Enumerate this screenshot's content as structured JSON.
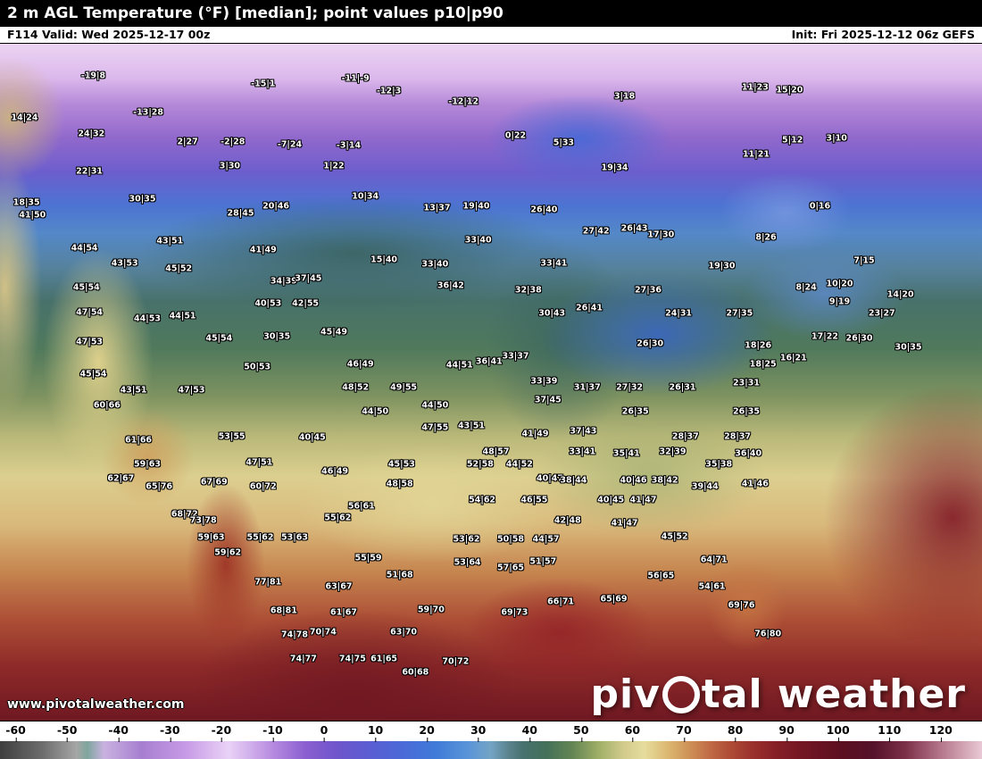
{
  "header": {
    "title": "2 m AGL Temperature (°F) [median]; point values p10|p90",
    "frame_valid": "F114 Valid: Wed 2025-12-17 00z",
    "init": "Init: Fri 2025-12-12 06z GEFS"
  },
  "watermark": {
    "site": "www.pivotalweather.com",
    "brand_pre": "piv",
    "brand_post": "tal weather"
  },
  "colorbar": {
    "ticks": [
      -60,
      -50,
      -40,
      -30,
      -20,
      -10,
      0,
      10,
      20,
      30,
      40,
      50,
      60,
      70,
      80,
      90,
      100,
      110,
      120
    ],
    "stops": [
      {
        "v": -60,
        "c": "#3f3f3f"
      },
      {
        "v": -52,
        "c": "#6e6e6e"
      },
      {
        "v": -46,
        "c": "#a6a6a6"
      },
      {
        "v": -44,
        "c": "#7fa69e"
      },
      {
        "v": -41,
        "c": "#c9b2e0"
      },
      {
        "v": -34,
        "c": "#a77fd0"
      },
      {
        "v": -26,
        "c": "#c79ae6"
      },
      {
        "v": -18,
        "c": "#e9d2f6"
      },
      {
        "v": -10,
        "c": "#b78ae0"
      },
      {
        "v": -4,
        "c": "#8a5fd0"
      },
      {
        "v": 2,
        "c": "#6f55cc"
      },
      {
        "v": 8,
        "c": "#5a5ed2"
      },
      {
        "v": 14,
        "c": "#4a6ad8"
      },
      {
        "v": 20,
        "c": "#3f7bd8"
      },
      {
        "v": 26,
        "c": "#5b95d8"
      },
      {
        "v": 30,
        "c": "#74a4c4"
      },
      {
        "v": 33,
        "c": "#5c8490"
      },
      {
        "v": 36,
        "c": "#46716e"
      },
      {
        "v": 40,
        "c": "#44705a"
      },
      {
        "v": 45,
        "c": "#648553"
      },
      {
        "v": 50,
        "c": "#a2b168"
      },
      {
        "v": 54,
        "c": "#cfc98a"
      },
      {
        "v": 58,
        "c": "#e6dd9d"
      },
      {
        "v": 62,
        "c": "#ddbb75"
      },
      {
        "v": 66,
        "c": "#cf9558"
      },
      {
        "v": 70,
        "c": "#c16c46"
      },
      {
        "v": 74,
        "c": "#ae4b36"
      },
      {
        "v": 78,
        "c": "#9a302c"
      },
      {
        "v": 82,
        "c": "#862027"
      },
      {
        "v": 88,
        "c": "#701523"
      },
      {
        "v": 94,
        "c": "#5c0f20"
      },
      {
        "v": 100,
        "c": "#55122a"
      },
      {
        "v": 106,
        "c": "#7c3048"
      },
      {
        "v": 112,
        "c": "#b27288"
      },
      {
        "v": 120,
        "c": "#e9c9d4"
      }
    ]
  },
  "chart_data": {
    "type": "map",
    "title": "2 m AGL Temperature (°F) [median]; point values p10|p90",
    "units": "°F",
    "value_format": "p10|p90",
    "model": "GEFS",
    "forecast_hour": "F114",
    "valid": "Wed 2025-12-17 00z",
    "init_time": "Fri 2025-12-12 06z",
    "points": [
      {
        "x": 9.5,
        "y": 4.8,
        "v": "-19|8"
      },
      {
        "x": 26.8,
        "y": 6.0,
        "v": "-15|1"
      },
      {
        "x": 36.2,
        "y": 5.2,
        "v": "-11|-9"
      },
      {
        "x": 39.6,
        "y": 7.0,
        "v": "-12|3"
      },
      {
        "x": 63.6,
        "y": 7.8,
        "v": "3|18"
      },
      {
        "x": 76.9,
        "y": 6.4,
        "v": "11|23"
      },
      {
        "x": 80.4,
        "y": 6.8,
        "v": "15|20"
      },
      {
        "x": 2.5,
        "y": 11.0,
        "v": "14|24"
      },
      {
        "x": 15.1,
        "y": 10.2,
        "v": "-13|28"
      },
      {
        "x": 47.2,
        "y": 8.6,
        "v": "-12|12"
      },
      {
        "x": 9.3,
        "y": 13.3,
        "v": "24|32"
      },
      {
        "x": 52.5,
        "y": 13.6,
        "v": "0|22"
      },
      {
        "x": 57.4,
        "y": 14.6,
        "v": "5|33"
      },
      {
        "x": 19.1,
        "y": 14.5,
        "v": "2|27"
      },
      {
        "x": 23.7,
        "y": 14.5,
        "v": "-2|28"
      },
      {
        "x": 29.5,
        "y": 14.9,
        "v": "-7|24"
      },
      {
        "x": 35.5,
        "y": 15.1,
        "v": "-3|14"
      },
      {
        "x": 80.7,
        "y": 14.2,
        "v": "5|12"
      },
      {
        "x": 85.2,
        "y": 14.0,
        "v": "3|10"
      },
      {
        "x": 77.0,
        "y": 16.4,
        "v": "11|21"
      },
      {
        "x": 9.1,
        "y": 18.8,
        "v": "22|31"
      },
      {
        "x": 23.4,
        "y": 18.1,
        "v": "3|30"
      },
      {
        "x": 34.0,
        "y": 18.1,
        "v": "1|22"
      },
      {
        "x": 62.6,
        "y": 18.3,
        "v": "19|34"
      },
      {
        "x": 37.2,
        "y": 22.5,
        "v": "10|34"
      },
      {
        "x": 14.5,
        "y": 23.0,
        "v": "30|35"
      },
      {
        "x": 2.7,
        "y": 23.5,
        "v": "18|35"
      },
      {
        "x": 28.1,
        "y": 24.0,
        "v": "20|46"
      },
      {
        "x": 24.5,
        "y": 25.1,
        "v": "28|45"
      },
      {
        "x": 44.5,
        "y": 24.3,
        "v": "13|37"
      },
      {
        "x": 48.5,
        "y": 24.0,
        "v": "19|40"
      },
      {
        "x": 55.4,
        "y": 24.5,
        "v": "26|40"
      },
      {
        "x": 3.3,
        "y": 25.3,
        "v": "41|50"
      },
      {
        "x": 83.5,
        "y": 24.0,
        "v": "0|16"
      },
      {
        "x": 60.7,
        "y": 27.7,
        "v": "27|42"
      },
      {
        "x": 64.6,
        "y": 27.3,
        "v": "26|43"
      },
      {
        "x": 67.3,
        "y": 28.2,
        "v": "17|30"
      },
      {
        "x": 78.0,
        "y": 28.6,
        "v": "8|26"
      },
      {
        "x": 17.3,
        "y": 29.2,
        "v": "43|51"
      },
      {
        "x": 8.6,
        "y": 30.2,
        "v": "44|54"
      },
      {
        "x": 48.7,
        "y": 29.0,
        "v": "33|40"
      },
      {
        "x": 12.7,
        "y": 32.5,
        "v": "43|53"
      },
      {
        "x": 18.2,
        "y": 33.2,
        "v": "45|52"
      },
      {
        "x": 26.8,
        "y": 30.5,
        "v": "41|49"
      },
      {
        "x": 39.1,
        "y": 31.9,
        "v": "15|40"
      },
      {
        "x": 44.3,
        "y": 32.6,
        "v": "33|40"
      },
      {
        "x": 56.4,
        "y": 32.5,
        "v": "33|41"
      },
      {
        "x": 73.5,
        "y": 32.9,
        "v": "19|30"
      },
      {
        "x": 88.0,
        "y": 32.1,
        "v": "7|15"
      },
      {
        "x": 8.8,
        "y": 36.0,
        "v": "45|54"
      },
      {
        "x": 28.9,
        "y": 35.1,
        "v": "34|39"
      },
      {
        "x": 31.4,
        "y": 34.7,
        "v": "37|45"
      },
      {
        "x": 45.9,
        "y": 35.8,
        "v": "36|42"
      },
      {
        "x": 53.8,
        "y": 36.4,
        "v": "32|38"
      },
      {
        "x": 66.0,
        "y": 36.4,
        "v": "27|36"
      },
      {
        "x": 82.1,
        "y": 36.0,
        "v": "8|24"
      },
      {
        "x": 85.5,
        "y": 35.5,
        "v": "10|20"
      },
      {
        "x": 85.5,
        "y": 38.1,
        "v": "9|19"
      },
      {
        "x": 91.7,
        "y": 37.1,
        "v": "14|20"
      },
      {
        "x": 89.8,
        "y": 39.9,
        "v": "23|27"
      },
      {
        "x": 75.3,
        "y": 39.9,
        "v": "27|35"
      },
      {
        "x": 60.0,
        "y": 39.0,
        "v": "26|41"
      },
      {
        "x": 56.2,
        "y": 39.9,
        "v": "30|43"
      },
      {
        "x": 69.1,
        "y": 39.9,
        "v": "24|31"
      },
      {
        "x": 9.1,
        "y": 39.7,
        "v": "47|54"
      },
      {
        "x": 15.0,
        "y": 40.6,
        "v": "44|53"
      },
      {
        "x": 18.6,
        "y": 40.3,
        "v": "44|51"
      },
      {
        "x": 27.3,
        "y": 38.4,
        "v": "40|53"
      },
      {
        "x": 31.1,
        "y": 38.4,
        "v": "42|55"
      },
      {
        "x": 28.2,
        "y": 43.3,
        "v": "30|35"
      },
      {
        "x": 34.0,
        "y": 42.6,
        "v": "45|49"
      },
      {
        "x": 9.1,
        "y": 44.0,
        "v": "47|53"
      },
      {
        "x": 22.3,
        "y": 43.6,
        "v": "45|54"
      },
      {
        "x": 66.2,
        "y": 44.3,
        "v": "26|30"
      },
      {
        "x": 84.0,
        "y": 43.3,
        "v": "17|22"
      },
      {
        "x": 87.5,
        "y": 43.6,
        "v": "26|30"
      },
      {
        "x": 92.5,
        "y": 44.9,
        "v": "30|35"
      },
      {
        "x": 77.2,
        "y": 44.6,
        "v": "18|26"
      },
      {
        "x": 80.8,
        "y": 46.5,
        "v": "16|21"
      },
      {
        "x": 77.7,
        "y": 47.3,
        "v": "18|25"
      },
      {
        "x": 46.8,
        "y": 47.5,
        "v": "44|51"
      },
      {
        "x": 49.8,
        "y": 46.9,
        "v": "36|41"
      },
      {
        "x": 52.5,
        "y": 46.2,
        "v": "33|37"
      },
      {
        "x": 36.7,
        "y": 47.3,
        "v": "46|49"
      },
      {
        "x": 26.2,
        "y": 47.8,
        "v": "50|53"
      },
      {
        "x": 9.5,
        "y": 48.8,
        "v": "45|54"
      },
      {
        "x": 76.0,
        "y": 50.1,
        "v": "23|31"
      },
      {
        "x": 13.6,
        "y": 51.2,
        "v": "43|51"
      },
      {
        "x": 19.5,
        "y": 51.2,
        "v": "47|53"
      },
      {
        "x": 36.2,
        "y": 50.8,
        "v": "48|52"
      },
      {
        "x": 41.1,
        "y": 50.8,
        "v": "49|55"
      },
      {
        "x": 59.8,
        "y": 50.8,
        "v": "31|37"
      },
      {
        "x": 64.1,
        "y": 50.8,
        "v": "27|32"
      },
      {
        "x": 69.5,
        "y": 50.8,
        "v": "26|31"
      },
      {
        "x": 55.4,
        "y": 49.9,
        "v": "33|39"
      },
      {
        "x": 10.9,
        "y": 53.4,
        "v": "60|66"
      },
      {
        "x": 38.2,
        "y": 54.3,
        "v": "44|50"
      },
      {
        "x": 44.3,
        "y": 53.4,
        "v": "44|50"
      },
      {
        "x": 55.8,
        "y": 52.7,
        "v": "37|45"
      },
      {
        "x": 64.7,
        "y": 54.3,
        "v": "26|35"
      },
      {
        "x": 76.0,
        "y": 54.4,
        "v": "26|35"
      },
      {
        "x": 44.3,
        "y": 56.7,
        "v": "47|55"
      },
      {
        "x": 48.0,
        "y": 56.4,
        "v": "43|51"
      },
      {
        "x": 54.5,
        "y": 57.7,
        "v": "41|49"
      },
      {
        "x": 59.4,
        "y": 57.2,
        "v": "37|43"
      },
      {
        "x": 69.8,
        "y": 58.0,
        "v": "28|37"
      },
      {
        "x": 75.1,
        "y": 58.0,
        "v": "28|37"
      },
      {
        "x": 14.1,
        "y": 58.6,
        "v": "61|66"
      },
      {
        "x": 23.6,
        "y": 58.0,
        "v": "53|55"
      },
      {
        "x": 31.8,
        "y": 58.2,
        "v": "40|45"
      },
      {
        "x": 63.8,
        "y": 60.6,
        "v": "35|41"
      },
      {
        "x": 68.5,
        "y": 60.3,
        "v": "32|39"
      },
      {
        "x": 76.2,
        "y": 60.6,
        "v": "36|40"
      },
      {
        "x": 73.2,
        "y": 62.1,
        "v": "35|38"
      },
      {
        "x": 15.0,
        "y": 62.1,
        "v": "59|63"
      },
      {
        "x": 26.4,
        "y": 61.9,
        "v": "47|51"
      },
      {
        "x": 48.9,
        "y": 62.1,
        "v": "52|58"
      },
      {
        "x": 50.5,
        "y": 60.3,
        "v": "48|57"
      },
      {
        "x": 52.9,
        "y": 62.1,
        "v": "44|52"
      },
      {
        "x": 56.0,
        "y": 64.2,
        "v": "40|47"
      },
      {
        "x": 34.1,
        "y": 63.2,
        "v": "46|49"
      },
      {
        "x": 40.9,
        "y": 62.1,
        "v": "45|53"
      },
      {
        "x": 40.7,
        "y": 65.1,
        "v": "48|58"
      },
      {
        "x": 12.3,
        "y": 64.2,
        "v": "62|67"
      },
      {
        "x": 16.2,
        "y": 65.5,
        "v": "65|76"
      },
      {
        "x": 21.8,
        "y": 64.8,
        "v": "67|69"
      },
      {
        "x": 26.8,
        "y": 65.5,
        "v": "60|72"
      },
      {
        "x": 58.4,
        "y": 64.5,
        "v": "38|44"
      },
      {
        "x": 64.5,
        "y": 64.5,
        "v": "40|46"
      },
      {
        "x": 67.7,
        "y": 64.5,
        "v": "38|42"
      },
      {
        "x": 71.8,
        "y": 65.5,
        "v": "39|44"
      },
      {
        "x": 76.9,
        "y": 65.1,
        "v": "41|46"
      },
      {
        "x": 65.5,
        "y": 67.4,
        "v": "41|47"
      },
      {
        "x": 62.2,
        "y": 67.4,
        "v": "40|45"
      },
      {
        "x": 54.4,
        "y": 67.4,
        "v": "46|55"
      },
      {
        "x": 49.1,
        "y": 67.4,
        "v": "54|62"
      },
      {
        "x": 36.8,
        "y": 68.4,
        "v": "56|61"
      },
      {
        "x": 57.8,
        "y": 70.4,
        "v": "42|48"
      },
      {
        "x": 63.6,
        "y": 70.8,
        "v": "41|47"
      },
      {
        "x": 18.8,
        "y": 69.5,
        "v": "68|72"
      },
      {
        "x": 20.7,
        "y": 70.4,
        "v": "73|78"
      },
      {
        "x": 34.4,
        "y": 70.1,
        "v": "55|62"
      },
      {
        "x": 68.7,
        "y": 72.8,
        "v": "45|52"
      },
      {
        "x": 21.5,
        "y": 73.0,
        "v": "59|63"
      },
      {
        "x": 26.5,
        "y": 73.0,
        "v": "55|62"
      },
      {
        "x": 30.0,
        "y": 73.0,
        "v": "53|63"
      },
      {
        "x": 23.2,
        "y": 75.2,
        "v": "59|62"
      },
      {
        "x": 37.5,
        "y": 76.0,
        "v": "55|59"
      },
      {
        "x": 47.5,
        "y": 73.2,
        "v": "53|62"
      },
      {
        "x": 52.0,
        "y": 73.2,
        "v": "50|58"
      },
      {
        "x": 55.6,
        "y": 73.2,
        "v": "44|57"
      },
      {
        "x": 47.6,
        "y": 76.6,
        "v": "53|64"
      },
      {
        "x": 52.0,
        "y": 77.5,
        "v": "57|65"
      },
      {
        "x": 55.3,
        "y": 76.5,
        "v": "51|57"
      },
      {
        "x": 27.3,
        "y": 79.5,
        "v": "77|81"
      },
      {
        "x": 34.5,
        "y": 80.2,
        "v": "63|67"
      },
      {
        "x": 40.7,
        "y": 78.5,
        "v": "51|68"
      },
      {
        "x": 62.5,
        "y": 82.1,
        "v": "65|69"
      },
      {
        "x": 57.1,
        "y": 82.5,
        "v": "66|71"
      },
      {
        "x": 52.4,
        "y": 84.1,
        "v": "69|73"
      },
      {
        "x": 43.9,
        "y": 83.6,
        "v": "59|70"
      },
      {
        "x": 41.1,
        "y": 86.9,
        "v": "63|70"
      },
      {
        "x": 28.9,
        "y": 83.8,
        "v": "68|81"
      },
      {
        "x": 35.0,
        "y": 84.1,
        "v": "61|67"
      },
      {
        "x": 32.9,
        "y": 86.9,
        "v": "70|74"
      },
      {
        "x": 30.0,
        "y": 87.3,
        "v": "74|78"
      },
      {
        "x": 35.9,
        "y": 90.9,
        "v": "74|75"
      },
      {
        "x": 30.9,
        "y": 90.9,
        "v": "74|77"
      },
      {
        "x": 39.1,
        "y": 90.9,
        "v": "61|65"
      },
      {
        "x": 42.3,
        "y": 92.9,
        "v": "60|68"
      },
      {
        "x": 46.4,
        "y": 91.3,
        "v": "70|72"
      },
      {
        "x": 67.3,
        "y": 78.6,
        "v": "56|65"
      },
      {
        "x": 72.7,
        "y": 76.2,
        "v": "64|71"
      },
      {
        "x": 72.5,
        "y": 80.2,
        "v": "54|61"
      },
      {
        "x": 75.5,
        "y": 83.0,
        "v": "69|76"
      },
      {
        "x": 78.2,
        "y": 87.2,
        "v": "76|80"
      },
      {
        "x": 59.3,
        "y": 60.3,
        "v": "33|41"
      }
    ]
  }
}
